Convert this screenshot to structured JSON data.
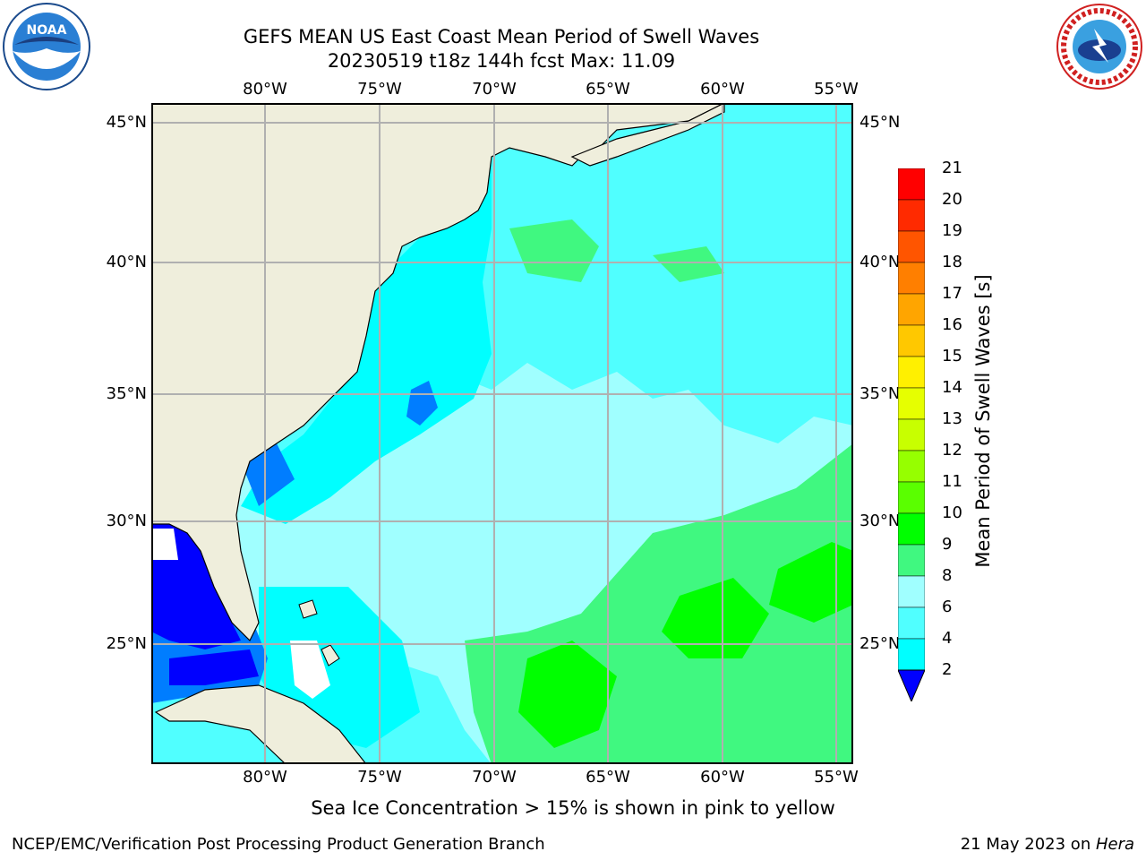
{
  "title_line1": "GEFS MEAN US East Coast Mean Period of Swell Waves",
  "title_line2": "20230519 t18z 144h fcst   Max: 11.09",
  "logos": {
    "left": "noaa-logo",
    "right": "nws-logo"
  },
  "map": {
    "type": "filled-contour-map",
    "lon_ticks": [
      "80°W",
      "75°W",
      "70°W",
      "65°W",
      "60°W",
      "55°W"
    ],
    "lat_ticks": [
      "45°N",
      "40°N",
      "35°N",
      "30°N",
      "25°N"
    ],
    "colors": {
      "land": "#efeedc",
      "grid": "#b0b0b0",
      "ice": "#ffffff"
    }
  },
  "colorbar": {
    "label": "Mean Period of Swell Waves [s]",
    "ticks": [
      "21",
      "20",
      "19",
      "18",
      "17",
      "16",
      "15",
      "14",
      "13",
      "12",
      "11",
      "10",
      "9",
      "8",
      "6",
      "4",
      "2"
    ],
    "colors": [
      "#ff0000",
      "#ff2a00",
      "#ff5500",
      "#ff7f00",
      "#ffa500",
      "#ffc800",
      "#fff000",
      "#e6ff00",
      "#c8ff00",
      "#96ff00",
      "#5aff00",
      "#00ff00",
      "#40f880",
      "#a0ffff",
      "#50ffff",
      "#00ffff",
      "#007dff"
    ],
    "under_color": "#0000ff",
    "range": [
      2,
      21
    ]
  },
  "footnote": "Sea Ice Concentration > 15% is shown in pink to yellow",
  "credit_left": "NCEP/EMC/Verification Post Processing Product Generation Branch",
  "credit_right_date": "21 May 2023 on ",
  "credit_right_machine": "Hera"
}
